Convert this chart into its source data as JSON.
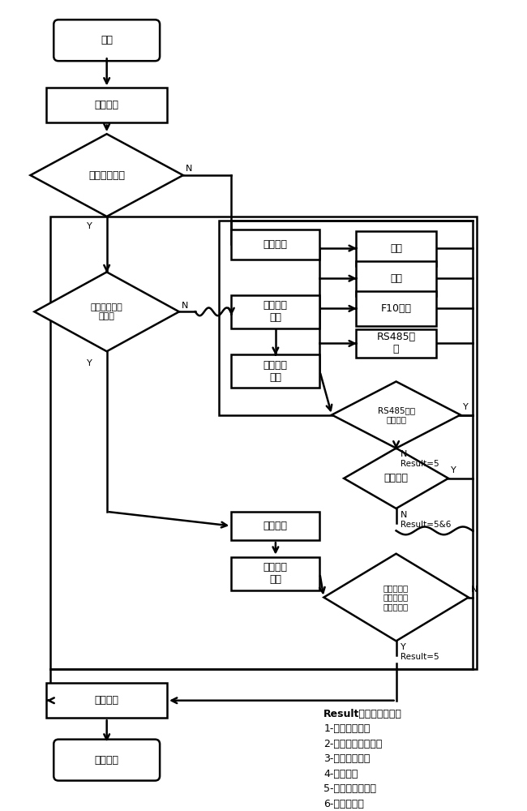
{
  "bg_color": "#ffffff",
  "nodes": {
    "start": {
      "label": "开始"
    },
    "verify": {
      "label": "核对信息"
    },
    "d1": {
      "label": "掌机中继成功"
    },
    "gencheck": {
      "label": "一般检查"
    },
    "d2": {
      "label": "终端参数是否\n已查处"
    },
    "checkt": {
      "label": "查处终端\n参数"
    },
    "clock": {
      "label": "时钟"
    },
    "task": {
      "label": "任务"
    },
    "f10": {
      "label": "F10参数"
    },
    "rs485w": {
      "label": "RS485接\n线"
    },
    "checkd": {
      "label": "查处下行\n通信"
    },
    "rs485p": {
      "label": "RS485通信\n端口正常"
    },
    "commm": {
      "label": "通信匹配"
    },
    "relay": {
      "label": "中继抄表"
    },
    "manual": {
      "label": "人工确认\n故障"
    },
    "termchk": {
      "label": "终端参数检\n查与下行通\n信是否已查"
    },
    "feedback": {
      "label": "反馈系统"
    },
    "end": {
      "label": "调试结束"
    }
  },
  "result_lines": [
    "Result反馈结果说明：",
    "1-疑难问题处理",
    "2-公网信号问题处理",
    "3-处理结果校验",
    "4-档案更正",
    "5-更换终端子流程",
    "6-更换电能表"
  ]
}
